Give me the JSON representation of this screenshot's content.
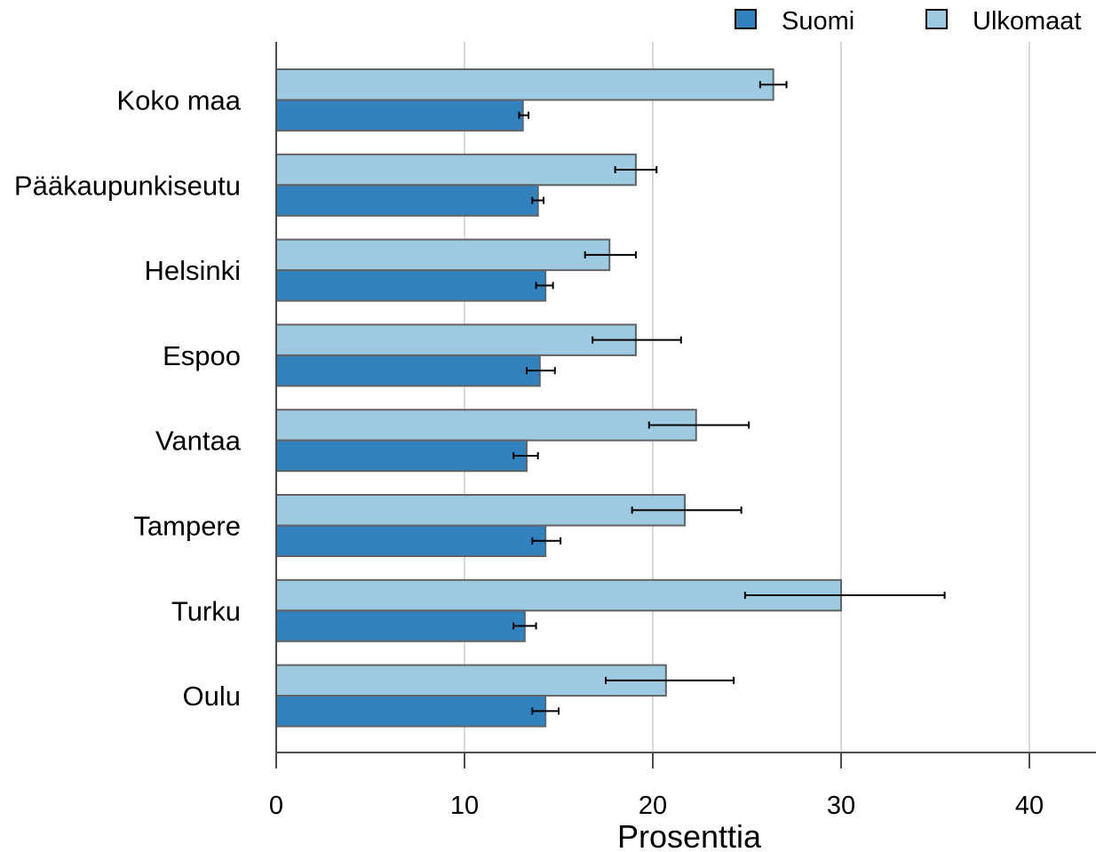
{
  "colors": {
    "suomi": "#3182bd",
    "ulkomaat": "#9ecae1",
    "bar_stroke": "#636363",
    "grid": "#d9d9d9",
    "axis": "#4d4d4d",
    "errorbar": "#000000"
  },
  "chart_data": {
    "type": "bar",
    "orientation": "horizontal",
    "title": "",
    "xlabel": "Prosenttia",
    "ylabel": "",
    "xlim": [
      0,
      43.5
    ],
    "x_ticks": [
      0,
      10,
      20,
      30,
      40
    ],
    "x_tick_labels": [
      "0",
      "10",
      "20",
      "30",
      "40"
    ],
    "grid": "vertical",
    "legend_position": "top-right",
    "categories": [
      "Koko maa",
      "Pääkaupunkiseutu",
      "Helsinki",
      "Espoo",
      "Vantaa",
      "Tampere",
      "Turku",
      "Oulu"
    ],
    "series": [
      {
        "name": "Suomi",
        "color_key": "suomi",
        "values": [
          13.1,
          13.9,
          14.3,
          14.0,
          13.3,
          14.3,
          13.2,
          14.3
        ],
        "error_low": [
          12.9,
          13.6,
          13.8,
          13.3,
          12.6,
          13.6,
          12.6,
          13.6
        ],
        "error_high": [
          13.4,
          14.2,
          14.7,
          14.8,
          13.9,
          15.1,
          13.8,
          15.0
        ]
      },
      {
        "name": "Ulkomaat",
        "color_key": "ulkomaat",
        "values": [
          26.4,
          19.1,
          17.7,
          19.1,
          22.3,
          21.7,
          30.0,
          20.7
        ],
        "error_low": [
          25.7,
          18.0,
          16.4,
          16.8,
          19.8,
          18.9,
          24.9,
          17.5
        ],
        "error_high": [
          27.1,
          20.2,
          19.1,
          21.5,
          25.1,
          24.7,
          35.5,
          24.3
        ]
      }
    ]
  }
}
